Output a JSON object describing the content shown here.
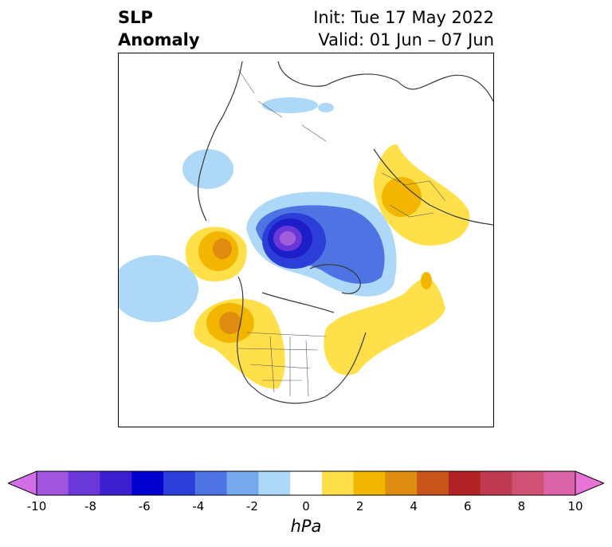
{
  "title": {
    "left_line1": "SLP",
    "left_line2": "Anomaly",
    "right_line1": "Init: Tue 17 May 2022",
    "right_line2": "Valid: 01 Jun – 07 Jun"
  },
  "colorbar": {
    "unit": "hPa",
    "ticks": [
      "-10",
      "-8",
      "-6",
      "-4",
      "-2",
      "0",
      "2",
      "4",
      "6",
      "8",
      "10"
    ],
    "colors": [
      "#d36fe6",
      "#9f55e0",
      "#6a38d8",
      "#3a1ed0",
      "#0000cf",
      "#2b3ed8",
      "#4e73e3",
      "#75a9ee",
      "#aed8f8",
      "#ffffff",
      "#ffe04a",
      "#f2b600",
      "#df8c10",
      "#c8561a",
      "#b32224",
      "#c03a50",
      "#d15175",
      "#dc63a8",
      "#e873d6"
    ]
  },
  "colors": {
    "low_core": "#a25fd9",
    "low_mid": "#1e1ec8",
    "low_outer": "#4e73e3",
    "low_edge": "#aed8f8",
    "high_light": "#ffe04a",
    "high_mid": "#f2b600",
    "high_strong": "#df8c10",
    "land_line": "#3a3a3a"
  }
}
